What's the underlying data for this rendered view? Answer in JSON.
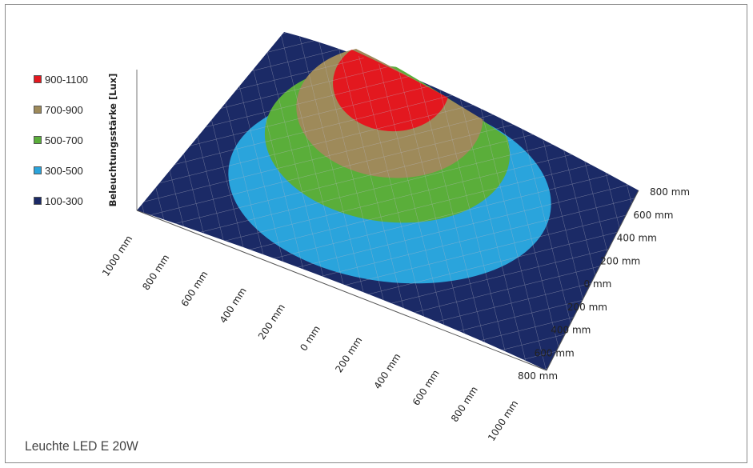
{
  "caption": "Leuchte LED E 20W",
  "chart_data": {
    "type": "surface",
    "zlabel": "Beleuchtungsstärke [Lux]",
    "x_ticks": [
      "1000 mm",
      "800 mm",
      "600 mm",
      "400 mm",
      "200 mm",
      "0 mm",
      "200 mm",
      "400 mm",
      "600 mm",
      "800 mm",
      "1000 mm"
    ],
    "y_ticks": [
      "800 mm",
      "600 mm",
      "400 mm",
      "200 mm",
      "0 mm",
      "200 mm",
      "400 mm",
      "600 mm",
      "800 mm"
    ],
    "bands": [
      {
        "label": "900-1100",
        "color": "#e3181f"
      },
      {
        "label": "700-900",
        "color": "#9e8a5a"
      },
      {
        "label": "500-700",
        "color": "#5aae3a"
      },
      {
        "label": "300-500",
        "color": "#2aa4dc"
      },
      {
        "label": "100-300",
        "color": "#1b2a66"
      }
    ]
  }
}
